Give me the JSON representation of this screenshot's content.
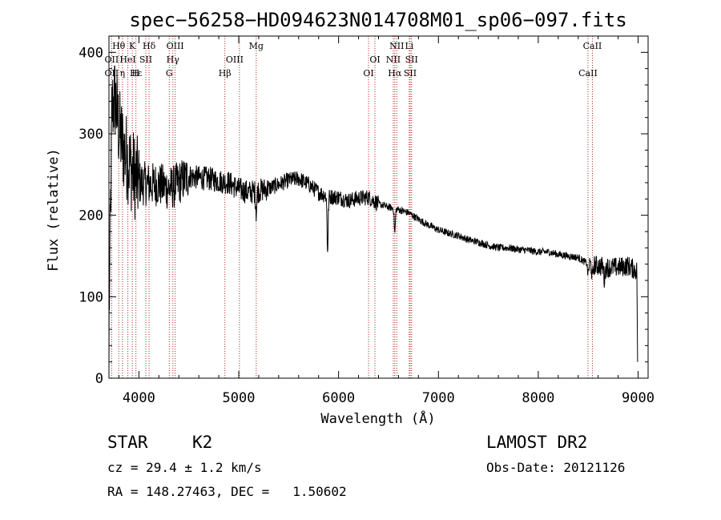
{
  "chart_data": {
    "type": "line",
    "title": "spec−56258−HD094623N014708M01_sp06−097.fits",
    "xlabel": "Wavelength (Å)",
    "ylabel": "Flux (relative)",
    "xlim": [
      3700,
      9100
    ],
    "ylim": [
      0,
      420
    ],
    "xticks": [
      4000,
      5000,
      6000,
      7000,
      8000,
      9000
    ],
    "yticks": [
      0,
      100,
      200,
      300,
      400
    ],
    "grid": false,
    "line_color": "#000000",
    "marker_line_color": "#b22222",
    "spectrum_anchors": [
      [
        3700,
        60
      ],
      [
        3730,
        330
      ],
      [
        3760,
        345
      ],
      [
        3800,
        305
      ],
      [
        3850,
        280
      ],
      [
        3900,
        265
      ],
      [
        3950,
        250
      ],
      [
        4000,
        240
      ],
      [
        4100,
        238
      ],
      [
        4200,
        238
      ],
      [
        4300,
        233
      ],
      [
        4350,
        235
      ],
      [
        4400,
        240
      ],
      [
        4500,
        248
      ],
      [
        4600,
        246
      ],
      [
        4700,
        245
      ],
      [
        4800,
        242
      ],
      [
        4900,
        240
      ],
      [
        5000,
        232
      ],
      [
        5100,
        228
      ],
      [
        5200,
        230
      ],
      [
        5300,
        233
      ],
      [
        5400,
        238
      ],
      [
        5500,
        243
      ],
      [
        5600,
        245
      ],
      [
        5700,
        238
      ],
      [
        5800,
        228
      ],
      [
        5900,
        223
      ],
      [
        6000,
        222
      ],
      [
        6100,
        218
      ],
      [
        6200,
        221
      ],
      [
        6300,
        222
      ],
      [
        6400,
        214
      ],
      [
        6500,
        210
      ],
      [
        6600,
        207
      ],
      [
        6700,
        203
      ],
      [
        6800,
        195
      ],
      [
        6900,
        188
      ],
      [
        7000,
        182
      ],
      [
        7100,
        178
      ],
      [
        7200,
        175
      ],
      [
        7300,
        170
      ],
      [
        7400,
        167
      ],
      [
        7500,
        163
      ],
      [
        7600,
        160
      ],
      [
        7700,
        160
      ],
      [
        7800,
        158
      ],
      [
        7900,
        157
      ],
      [
        8000,
        155
      ],
      [
        8100,
        155
      ],
      [
        8200,
        152
      ],
      [
        8300,
        150
      ],
      [
        8400,
        148
      ],
      [
        8500,
        140
      ],
      [
        8600,
        138
      ],
      [
        8700,
        136
      ],
      [
        8800,
        136
      ],
      [
        8900,
        138
      ],
      [
        8980,
        132
      ]
    ],
    "spectrum_features": [
      {
        "x": 5175,
        "depth": 25
      },
      {
        "x": 5890,
        "depth": 65
      },
      {
        "x": 6563,
        "depth": 30
      },
      {
        "x": 8498,
        "depth": 12
      },
      {
        "x": 8542,
        "depth": 18
      },
      {
        "x": 8662,
        "depth": 16
      }
    ],
    "spectrum_noise": [
      {
        "from": 3700,
        "to": 4000,
        "amp": 110
      },
      {
        "from": 4000,
        "to": 4500,
        "amp": 55
      },
      {
        "from": 4500,
        "to": 5300,
        "amp": 30
      },
      {
        "from": 5300,
        "to": 6400,
        "amp": 20
      },
      {
        "from": 6400,
        "to": 8500,
        "amp": 9
      },
      {
        "from": 8500,
        "to": 9000,
        "amp": 25
      }
    ],
    "spectral_lines": [
      {
        "label": "Hθ",
        "x": 3798,
        "row": 0
      },
      {
        "label": "K",
        "x": 3934,
        "row": 0
      },
      {
        "label": "Hδ",
        "x": 4102,
        "row": 0
      },
      {
        "label": "OIII",
        "x": 4363,
        "row": 0
      },
      {
        "label": "Mg",
        "x": 5175,
        "row": 0
      },
      {
        "label": "NII",
        "x": 6583,
        "row": 0
      },
      {
        "label": "Li",
        "x": 6708,
        "row": 0
      },
      {
        "label": "CaII",
        "x": 8542,
        "row": 0
      },
      {
        "label": "OII",
        "x": 3727,
        "row": 1
      },
      {
        "label": "HeI",
        "x": 3889,
        "row": 1
      },
      {
        "label": "SII",
        "x": 4069,
        "row": 1
      },
      {
        "label": "Hγ",
        "x": 4340,
        "row": 1
      },
      {
        "label": "OIII",
        "x": 4959,
        "row": 1
      },
      {
        "label": "OI",
        "x": 6364,
        "row": 1
      },
      {
        "label": "NII",
        "x": 6548,
        "row": 1
      },
      {
        "label": "SII",
        "x": 6731,
        "row": 1
      },
      {
        "label": "OII",
        "x": 3727,
        "row": 2
      },
      {
        "label": "Hε",
        "x": 3970,
        "row": 2
      },
      {
        "label": "η",
        "x": 3835,
        "row": 2
      },
      {
        "label": "H",
        "x": 3968,
        "row": 2
      },
      {
        "label": "G",
        "x": 4304,
        "row": 2
      },
      {
        "label": "Hβ",
        "x": 4861,
        "row": 2
      },
      {
        "label": "OI",
        "x": 6300,
        "row": 2
      },
      {
        "label": "Hα",
        "x": 6563,
        "row": 2
      },
      {
        "label": "SII",
        "x": 6717,
        "row": 2
      },
      {
        "label": "CaII",
        "x": 8498,
        "row": 2
      }
    ],
    "marker_lines_x": [
      3727,
      3798,
      3835,
      3889,
      3934,
      3970,
      4069,
      4102,
      4304,
      4340,
      4363,
      4861,
      5007,
      5175,
      6300,
      6364,
      6548,
      6563,
      6583,
      6708,
      6717,
      6731,
      8498,
      8542
    ]
  },
  "info": {
    "object_class": "STAR",
    "subclass": "K2",
    "survey": "LAMOST DR2",
    "redshift": "cz = 29.4 ± 1.2 km/s",
    "obs_date": "Obs-Date: 20121126",
    "coords": "RA = 148.27463, DEC =   1.50602"
  }
}
